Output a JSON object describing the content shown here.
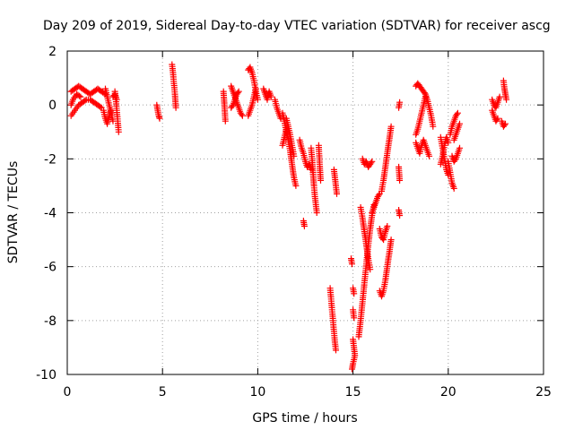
{
  "chart_data": {
    "type": "scatter",
    "title": "Day 209 of 2019, Sidereal Day-to-day VTEC variation (SDTVAR) for receiver ascg",
    "xlabel": "GPS time / hours",
    "ylabel": "SDTVAR / TECUs",
    "xlim": [
      0,
      25
    ],
    "ylim": [
      -10,
      2
    ],
    "xticks": [
      0,
      5,
      10,
      15,
      20,
      25
    ],
    "yticks": [
      -10,
      -8,
      -6,
      -4,
      -2,
      0,
      2
    ],
    "grid": true,
    "marker": "+",
    "color": "#ff0000",
    "series": [
      {
        "name": "SDTVAR",
        "segments": [
          [
            [
              0.2,
              0.5
            ],
            [
              0.4,
              0.6
            ],
            [
              0.6,
              0.7
            ],
            [
              0.8,
              0.6
            ],
            [
              1.0,
              0.5
            ],
            [
              1.2,
              0.4
            ],
            [
              1.4,
              0.5
            ],
            [
              1.6,
              0.6
            ],
            [
              1.8,
              0.5
            ],
            [
              2.0,
              0.4
            ]
          ],
          [
            [
              0.2,
              -0.4
            ],
            [
              0.4,
              -0.2
            ],
            [
              0.6,
              0.0
            ],
            [
              0.8,
              0.1
            ],
            [
              1.0,
              0.2
            ],
            [
              1.2,
              0.2
            ],
            [
              1.4,
              0.1
            ],
            [
              1.6,
              0.0
            ],
            [
              1.8,
              -0.1
            ]
          ],
          [
            [
              0.2,
              0.0
            ],
            [
              0.3,
              0.2
            ],
            [
              0.5,
              0.4
            ],
            [
              0.7,
              0.3
            ]
          ],
          [
            [
              1.9,
              -0.2
            ],
            [
              2.0,
              -0.5
            ],
            [
              2.1,
              -0.7
            ],
            [
              2.2,
              -0.4
            ],
            [
              2.3,
              -0.2
            ]
          ],
          [
            [
              2.0,
              0.6
            ],
            [
              2.1,
              0.3
            ],
            [
              2.2,
              0.0
            ],
            [
              2.3,
              -0.3
            ],
            [
              2.4,
              -0.6
            ]
          ],
          [
            [
              2.5,
              0.5
            ],
            [
              2.55,
              0.2
            ],
            [
              2.6,
              -0.2
            ],
            [
              2.65,
              -0.6
            ],
            [
              2.7,
              -1.0
            ]
          ],
          [
            [
              2.4,
              0.3
            ],
            [
              2.5,
              0.4
            ],
            [
              2.6,
              0.2
            ]
          ],
          [
            [
              4.7,
              0.0
            ],
            [
              4.75,
              -0.2
            ],
            [
              4.8,
              -0.4
            ],
            [
              4.85,
              -0.5
            ]
          ],
          [
            [
              5.5,
              1.5
            ],
            [
              5.55,
              1.2
            ],
            [
              5.6,
              0.8
            ],
            [
              5.65,
              0.4
            ],
            [
              5.7,
              -0.1
            ]
          ],
          [
            [
              8.2,
              0.5
            ],
            [
              8.25,
              0.0
            ],
            [
              8.3,
              -0.6
            ]
          ],
          [
            [
              8.6,
              0.7
            ],
            [
              8.7,
              0.5
            ],
            [
              8.8,
              0.3
            ],
            [
              8.9,
              0.1
            ],
            [
              9.0,
              -0.1
            ],
            [
              9.1,
              -0.3
            ],
            [
              9.2,
              -0.4
            ]
          ],
          [
            [
              8.6,
              -0.1
            ],
            [
              8.7,
              0.0
            ],
            [
              8.8,
              0.2
            ],
            [
              8.9,
              0.4
            ],
            [
              9.0,
              0.5
            ]
          ],
          [
            [
              9.5,
              1.3
            ],
            [
              9.6,
              1.4
            ],
            [
              9.7,
              1.2
            ],
            [
              9.8,
              0.9
            ],
            [
              9.9,
              0.5
            ],
            [
              10.0,
              0.2
            ]
          ],
          [
            [
              9.5,
              -0.4
            ],
            [
              9.6,
              -0.2
            ],
            [
              9.7,
              0.0
            ],
            [
              9.8,
              0.3
            ],
            [
              9.9,
              0.6
            ]
          ],
          [
            [
              10.3,
              0.6
            ],
            [
              10.4,
              0.4
            ],
            [
              10.5,
              0.2
            ],
            [
              10.6,
              0.5
            ],
            [
              10.7,
              0.3
            ]
          ],
          [
            [
              10.9,
              0.2
            ],
            [
              11.0,
              -0.1
            ],
            [
              11.1,
              -0.3
            ],
            [
              11.2,
              -0.5
            ]
          ],
          [
            [
              11.3,
              -0.3
            ],
            [
              11.4,
              -0.6
            ],
            [
              11.5,
              -1.0
            ],
            [
              11.6,
              -1.3
            ],
            [
              11.7,
              -1.7
            ],
            [
              11.8,
              -2.2
            ],
            [
              11.9,
              -2.7
            ],
            [
              12.0,
              -3.0
            ]
          ],
          [
            [
              11.5,
              -0.5
            ],
            [
              11.6,
              -0.8
            ],
            [
              11.7,
              -1.1
            ],
            [
              11.8,
              -1.5
            ],
            [
              11.9,
              -1.9
            ]
          ],
          [
            [
              11.3,
              -1.5
            ],
            [
              11.4,
              -1.2
            ],
            [
              11.5,
              -0.9
            ]
          ],
          [
            [
              12.2,
              -1.3
            ],
            [
              12.3,
              -1.6
            ],
            [
              12.4,
              -1.8
            ],
            [
              12.5,
              -2.1
            ],
            [
              12.6,
              -2.3
            ],
            [
              12.7,
              -2.2
            ],
            [
              12.8,
              -2.4
            ]
          ],
          [
            [
              12.4,
              -4.3
            ],
            [
              12.45,
              -4.5
            ]
          ],
          [
            [
              12.8,
              -1.6
            ],
            [
              12.85,
              -2.0
            ],
            [
              12.9,
              -2.5
            ],
            [
              12.95,
              -3.0
            ],
            [
              13.0,
              -3.4
            ],
            [
              13.05,
              -3.7
            ],
            [
              13.1,
              -4.0
            ]
          ],
          [
            [
              13.2,
              -1.5
            ],
            [
              13.25,
              -2.2
            ],
            [
              13.3,
              -2.8
            ]
          ],
          [
            [
              13.8,
              -6.8
            ],
            [
              13.85,
              -7.2
            ],
            [
              13.9,
              -7.6
            ],
            [
              13.95,
              -8.0
            ],
            [
              14.0,
              -8.4
            ],
            [
              14.05,
              -8.8
            ],
            [
              14.1,
              -9.1
            ]
          ],
          [
            [
              14.0,
              -2.4
            ],
            [
              14.05,
              -2.7
            ],
            [
              14.1,
              -3.0
            ],
            [
              14.15,
              -3.3
            ]
          ],
          [
            [
              14.9,
              -5.7
            ],
            [
              14.95,
              -5.9
            ]
          ],
          [
            [
              15.0,
              -6.8
            ],
            [
              15.05,
              -7.0
            ]
          ],
          [
            [
              15.0,
              -7.6
            ],
            [
              15.05,
              -7.9
            ]
          ],
          [
            [
              15.0,
              -8.7
            ],
            [
              15.05,
              -9.0
            ],
            [
              15.1,
              -9.3
            ],
            [
              15.0,
              -9.6
            ],
            [
              14.95,
              -9.8
            ]
          ],
          [
            [
              15.4,
              -3.8
            ],
            [
              15.5,
              -4.2
            ],
            [
              15.6,
              -4.7
            ],
            [
              15.7,
              -5.2
            ],
            [
              15.8,
              -5.7
            ],
            [
              15.9,
              -6.1
            ]
          ],
          [
            [
              15.5,
              -2.0
            ],
            [
              15.6,
              -2.2
            ],
            [
              15.7,
              -2.1
            ],
            [
              15.8,
              -2.3
            ],
            [
              15.9,
              -2.2
            ],
            [
              16.0,
              -2.1
            ]
          ],
          [
            [
              15.3,
              -8.6
            ],
            [
              15.4,
              -8.0
            ],
            [
              15.5,
              -7.3
            ],
            [
              15.6,
              -6.6
            ],
            [
              15.7,
              -5.9
            ],
            [
              15.8,
              -5.2
            ],
            [
              15.9,
              -4.6
            ],
            [
              16.0,
              -4.1
            ],
            [
              16.1,
              -3.7
            ]
          ],
          [
            [
              16.0,
              -4.0
            ],
            [
              16.1,
              -3.8
            ],
            [
              16.2,
              -3.6
            ],
            [
              16.3,
              -3.4
            ],
            [
              16.4,
              -3.3
            ]
          ],
          [
            [
              16.5,
              -3.2
            ],
            [
              16.6,
              -2.8
            ],
            [
              16.7,
              -2.3
            ],
            [
              16.8,
              -1.8
            ],
            [
              16.9,
              -1.3
            ],
            [
              17.0,
              -0.8
            ]
          ],
          [
            [
              16.4,
              -4.6
            ],
            [
              16.5,
              -4.9
            ],
            [
              16.6,
              -5.0
            ],
            [
              16.7,
              -4.7
            ],
            [
              16.8,
              -4.5
            ]
          ],
          [
            [
              16.4,
              -6.9
            ],
            [
              16.5,
              -7.1
            ],
            [
              16.6,
              -6.9
            ],
            [
              16.7,
              -6.5
            ],
            [
              16.8,
              -6.0
            ],
            [
              16.9,
              -5.5
            ],
            [
              17.0,
              -5.0
            ]
          ],
          [
            [
              17.4,
              -0.1
            ],
            [
              17.45,
              0.1
            ]
          ],
          [
            [
              17.4,
              -2.3
            ],
            [
              17.45,
              -2.8
            ]
          ],
          [
            [
              17.4,
              -3.9
            ],
            [
              17.45,
              -4.1
            ]
          ],
          [
            [
              18.3,
              0.7
            ],
            [
              18.4,
              0.8
            ],
            [
              18.5,
              0.7
            ],
            [
              18.6,
              0.6
            ],
            [
              18.7,
              0.5
            ],
            [
              18.8,
              0.4
            ],
            [
              18.9,
              0.2
            ],
            [
              19.0,
              -0.1
            ],
            [
              19.1,
              -0.4
            ],
            [
              19.2,
              -0.8
            ]
          ],
          [
            [
              18.3,
              -1.1
            ],
            [
              18.4,
              -0.9
            ],
            [
              18.5,
              -0.6
            ],
            [
              18.6,
              -0.3
            ],
            [
              18.7,
              0.0
            ],
            [
              18.8,
              0.3
            ]
          ],
          [
            [
              18.3,
              -1.4
            ],
            [
              18.4,
              -1.6
            ],
            [
              18.5,
              -1.8
            ],
            [
              18.6,
              -1.5
            ],
            [
              18.7,
              -1.3
            ],
            [
              18.8,
              -1.5
            ],
            [
              18.9,
              -1.7
            ],
            [
              19.0,
              -1.9
            ]
          ],
          [
            [
              19.6,
              -1.2
            ],
            [
              19.7,
              -1.6
            ],
            [
              19.8,
              -2.0
            ],
            [
              19.9,
              -2.4
            ],
            [
              20.0,
              -2.6
            ]
          ],
          [
            [
              19.6,
              -2.2
            ],
            [
              19.7,
              -1.9
            ],
            [
              19.8,
              -1.5
            ],
            [
              19.9,
              -1.2
            ],
            [
              20.0,
              -1.4
            ]
          ],
          [
            [
              20.0,
              -2.1
            ],
            [
              20.1,
              -2.5
            ],
            [
              20.2,
              -2.9
            ],
            [
              20.3,
              -3.1
            ]
          ],
          [
            [
              20.1,
              -1.1
            ],
            [
              20.2,
              -0.8
            ],
            [
              20.3,
              -0.6
            ],
            [
              20.4,
              -0.4
            ],
            [
              20.5,
              -0.3
            ]
          ],
          [
            [
              20.2,
              -1.9
            ],
            [
              20.3,
              -2.1
            ],
            [
              20.4,
              -2.0
            ],
            [
              20.5,
              -1.8
            ],
            [
              20.6,
              -1.6
            ]
          ],
          [
            [
              20.3,
              -1.3
            ],
            [
              20.4,
              -1.1
            ],
            [
              20.5,
              -0.9
            ],
            [
              20.6,
              -0.7
            ]
          ],
          [
            [
              22.3,
              -0.2
            ],
            [
              22.4,
              -0.4
            ],
            [
              22.5,
              -0.6
            ],
            [
              22.6,
              -0.5
            ]
          ],
          [
            [
              22.3,
              0.2
            ],
            [
              22.4,
              0.0
            ],
            [
              22.5,
              -0.1
            ],
            [
              22.6,
              0.1
            ],
            [
              22.7,
              0.3
            ]
          ],
          [
            [
              22.9,
              0.9
            ],
            [
              22.95,
              0.6
            ],
            [
              23.0,
              0.4
            ],
            [
              23.05,
              0.2
            ]
          ],
          [
            [
              22.8,
              -0.6
            ],
            [
              22.9,
              -0.8
            ],
            [
              23.0,
              -0.7
            ]
          ]
        ]
      }
    ]
  }
}
